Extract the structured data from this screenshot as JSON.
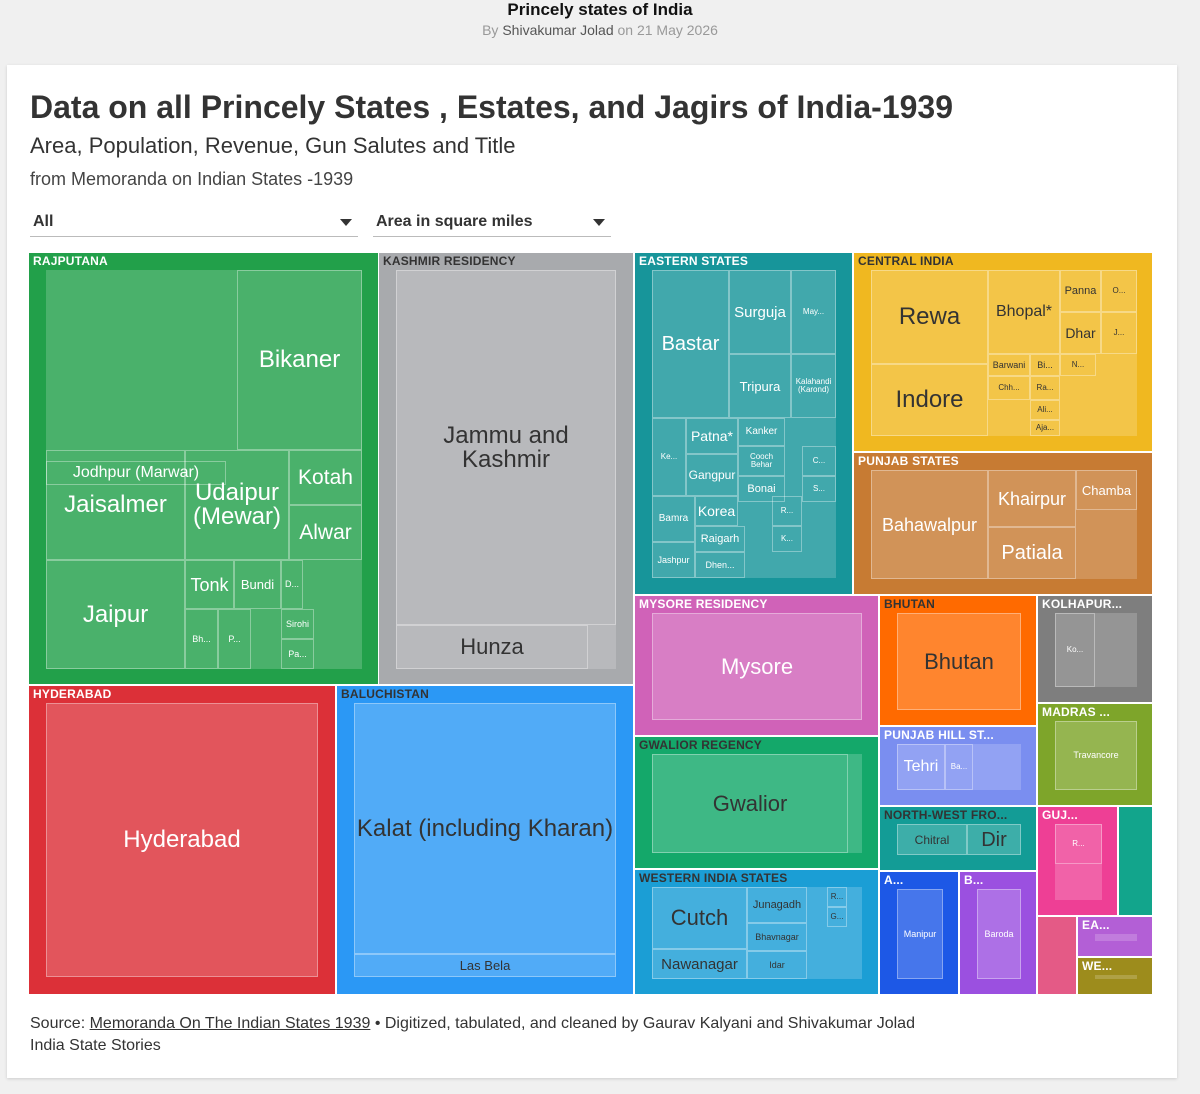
{
  "header": {
    "page_title": "Princely states of India",
    "by_prefix": "By",
    "author": "Shivakumar Jolad",
    "date_text": "on 21 May 2026"
  },
  "chart_title": "Data on all Princely States , Estates, and Jagirs of India-1939",
  "chart_subtitle": "Area, Population, Revenue, Gun Salutes and Title",
  "chart_description": "from Memoranda on Indian States -1939",
  "controls": {
    "region_filter": "All",
    "measure_select": "Area in square miles"
  },
  "footer": {
    "source_prefix": "Source:",
    "source_link": "Memoranda On The Indian States 1939",
    "source_suffix": "• Digitized, tabulated, and cleaned by Gaurav Kalyani and Shivakumar Jolad",
    "credit": "India State Stories"
  },
  "chart_data": {
    "type": "treemap",
    "measure": "Area in square miles",
    "groups": [
      {
        "name": "RAJPUTANA",
        "color": "#22a04a",
        "leaves": [
          "Jodhpur (Marwar)",
          "Bikaner",
          "Jaisalmer",
          "Udaipur (Mewar)",
          "Kotah",
          "Alwar",
          "Jaipur",
          "Tonk",
          "Bundi",
          "D...",
          "Bh...",
          "P...",
          "Sirohi",
          "Pa..."
        ]
      },
      {
        "name": "KASHMIR RESIDENCY",
        "color": "#a8aaad",
        "leaves": [
          "Jammu and Kashmir",
          "Hunza"
        ]
      },
      {
        "name": "EASTERN STATES",
        "color": "#17959a",
        "leaves": [
          "Bastar",
          "Surguja",
          "May...",
          "Tripura",
          "Kalahandi (Karond)",
          "Patna*",
          "Kanker",
          "Ke...",
          "Cooch Behar",
          "Gangpur",
          "C...",
          "Bonai",
          "S...",
          "Bamra",
          "Korea",
          "R...",
          "Raigarh",
          "K...",
          "Jashpur",
          "Dhen..."
        ]
      },
      {
        "name": "CENTRAL INDIA",
        "color": "#f0b820",
        "leaves": [
          "Rewa",
          "Bhopal*",
          "Panna",
          "O...",
          "Dhar",
          "J...",
          "Indore",
          "Barwani",
          "Bi...",
          "N...",
          "Chh...",
          "Ra...",
          "Ali...",
          "Aja..."
        ]
      },
      {
        "name": "PUNJAB STATES",
        "color": "#c77b33",
        "leaves": [
          "Bahawalpur",
          "Khairpur",
          "Chamba",
          "Patiala"
        ]
      },
      {
        "name": "HYDERABAD",
        "color": "#dc3038",
        "leaves": [
          "Hyderabad"
        ]
      },
      {
        "name": "BALUCHISTAN",
        "color": "#2b98f5",
        "leaves": [
          "Kalat (including Kharan)",
          "Las Bela"
        ]
      },
      {
        "name": "MYSORE RESIDENCY",
        "color": "#d062b8",
        "leaves": [
          "Mysore"
        ]
      },
      {
        "name": "GWALIOR REGENCY",
        "color": "#14a86a",
        "leaves": [
          "Gwalior"
        ]
      },
      {
        "name": "WESTERN INDIA STATES",
        "color": "#1b9ed5",
        "leaves": [
          "Cutch",
          "Junagadh",
          "R...",
          "G...",
          "Bhavnagar",
          "Nawanagar",
          "Idar"
        ]
      },
      {
        "name": "BHUTAN",
        "color": "#ff6a00",
        "leaves": [
          "Bhutan"
        ]
      },
      {
        "name": "KOLHAPUR...",
        "color": "#7e7e7e",
        "leaves": [
          "Ko..."
        ]
      },
      {
        "name": "MADRAS ...",
        "color": "#7ea52a",
        "leaves": [
          "Travancore"
        ]
      },
      {
        "name": "PUNJAB HILL ST...",
        "color": "#7a8ef0",
        "leaves": [
          "Tehri",
          "Ba..."
        ]
      },
      {
        "name": "NORTH-WEST FRO...",
        "color": "#139c96",
        "leaves": [
          "Chitral",
          "Dir"
        ]
      },
      {
        "name": "GUJ...",
        "color": "#ee3f95",
        "leaves": [
          "R..."
        ]
      },
      {
        "name": "A...",
        "color": "#1d58e6",
        "leaves": [
          "Manipur"
        ]
      },
      {
        "name": "B...",
        "color": "#9b50e0",
        "leaves": [
          "Baroda"
        ]
      },
      {
        "name": "EA...",
        "color": "#b35fd6",
        "leaves": []
      },
      {
        "name": "WE...",
        "color": "#9d8c1c",
        "leaves": []
      }
    ],
    "colors": {
      "rajputana": "#22a04a",
      "kashmir": "#a8aaad",
      "eastern": "#17959a",
      "central": "#f0b820",
      "punjab": "#c77b33",
      "hyderabad": "#dc3038",
      "baluchistan": "#2b98f5",
      "mysore": "#d062b8",
      "gwalior": "#14a86a",
      "western": "#1b9ed5",
      "bhutan": "#ff6a00",
      "kolhapur": "#7e7e7e",
      "madras": "#7ea52a",
      "punjab_hill": "#7a8ef0",
      "nwfp": "#139c96",
      "gujarat": "#ee3f95",
      "assam": "#1d58e6",
      "baroda": "#9b50e0",
      "eastern_agency": "#b35fd6",
      "western_agency": "#9d8c1c"
    }
  }
}
